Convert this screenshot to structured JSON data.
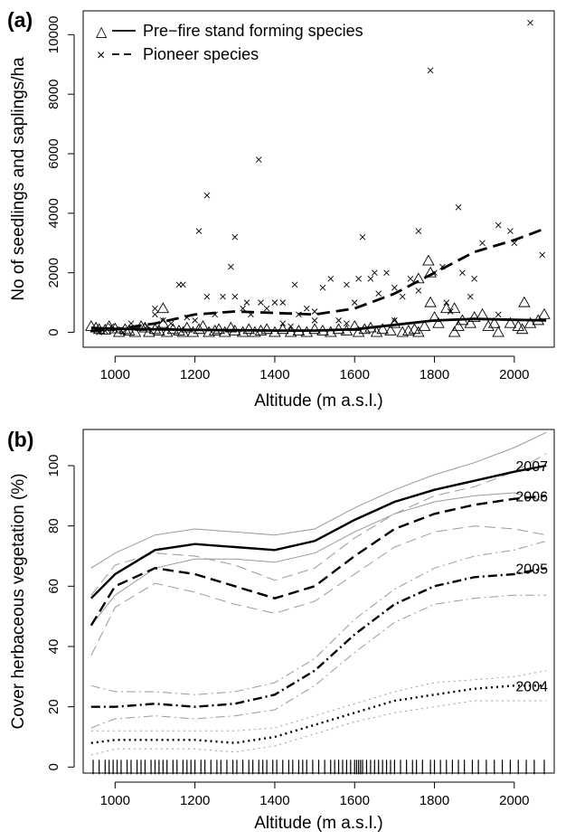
{
  "panel_a": {
    "tag": "(a)",
    "legend": [
      {
        "symbol": "△",
        "line": "solid",
        "label": "Pre−fire stand forming species"
      },
      {
        "symbol": "×",
        "line": "dashed",
        "label": "Pioneer species"
      }
    ]
  },
  "panel_b": {
    "tag": "(b)"
  },
  "chart_data": [
    {
      "type": "scatter",
      "xlabel": "Altitude (m a.s.l.)",
      "ylabel": "No of seedlings and saplings/ha",
      "xlim": [
        920,
        2100
      ],
      "ylim": [
        -500,
        10800
      ],
      "x_ticks": [
        1000,
        1200,
        1400,
        1600,
        1800,
        2000
      ],
      "y_ticks": [
        0,
        2000,
        4000,
        6000,
        8000,
        10000
      ],
      "grid": false,
      "legend_position": "top-left",
      "series": [
        {
          "name": "Pre−fire stand forming species",
          "marker": "triangle",
          "x": [
            940,
            952,
            960,
            975,
            985,
            1000,
            1010,
            1025,
            1035,
            1050,
            1065,
            1075,
            1085,
            1100,
            1110,
            1120,
            1130,
            1145,
            1160,
            1170,
            1180,
            1195,
            1210,
            1220,
            1235,
            1250,
            1260,
            1275,
            1290,
            1300,
            1320,
            1335,
            1350,
            1365,
            1380,
            1400,
            1420,
            1440,
            1460,
            1480,
            1500,
            1520,
            1540,
            1560,
            1580,
            1600,
            1610,
            1625,
            1640,
            1655,
            1670,
            1690,
            1700,
            1720,
            1735,
            1750,
            1760,
            1775,
            1785,
            1790,
            1800,
            1810,
            1830,
            1850,
            1860,
            1870,
            1890,
            1900,
            1920,
            1935,
            1960,
            1990,
            2010,
            2025,
            2040,
            2060,
            2075,
            1120,
            1760,
            1790,
            1850,
            1950,
            2020
          ],
          "y": [
            200,
            150,
            100,
            80,
            200,
            120,
            0,
            100,
            50,
            0,
            200,
            150,
            0,
            100,
            50,
            300,
            0,
            100,
            50,
            0,
            150,
            0,
            100,
            200,
            0,
            50,
            100,
            0,
            150,
            50,
            0,
            100,
            0,
            50,
            100,
            0,
            100,
            0,
            50,
            0,
            100,
            50,
            0,
            100,
            50,
            200,
            0,
            100,
            150,
            0,
            100,
            50,
            300,
            0,
            50,
            100,
            0,
            200,
            2400,
            1000,
            500,
            300,
            800,
            0,
            200,
            400,
            300,
            500,
            600,
            200,
            0,
            300,
            200,
            1000,
            300,
            400,
            600,
            800,
            1800,
            2000,
            800,
            300,
            100
          ]
        },
        {
          "name": "Pioneer species",
          "marker": "cross",
          "x": [
            950,
            960,
            975,
            990,
            1000,
            1020,
            1040,
            1060,
            1080,
            1100,
            1120,
            1140,
            1160,
            1170,
            1180,
            1200,
            1210,
            1230,
            1250,
            1270,
            1290,
            1300,
            1320,
            1340,
            1360,
            1365,
            1380,
            1400,
            1420,
            1440,
            1450,
            1460,
            1480,
            1500,
            1520,
            1540,
            1560,
            1580,
            1600,
            1610,
            1620,
            1640,
            1660,
            1680,
            1700,
            1720,
            1740,
            1760,
            1790,
            1800,
            1820,
            1840,
            1860,
            1870,
            1890,
            1920,
            1960,
            1990,
            2000,
            2040,
            2070,
            1100,
            1300,
            1500,
            1700,
            1900,
            1830,
            1960,
            1650,
            1230,
            1330,
            1420,
            1580,
            1760
          ],
          "y": [
            100,
            0,
            50,
            200,
            100,
            0,
            300,
            150,
            200,
            600,
            400,
            300,
            1600,
            1600,
            500,
            400,
            3400,
            4600,
            600,
            1200,
            2200,
            3200,
            800,
            600,
            5800,
            1000,
            800,
            1000,
            300,
            200,
            1600,
            600,
            800,
            700,
            1500,
            1800,
            400,
            300,
            1000,
            1800,
            3200,
            1800,
            1300,
            2000,
            1500,
            1200,
            1800,
            3400,
            8800,
            2000,
            2200,
            700,
            4200,
            2000,
            1200,
            3000,
            3600,
            3400,
            3000,
            10400,
            2600,
            800,
            1200,
            400,
            400,
            1800,
            1000,
            600,
            2000,
            1200,
            1000,
            1000,
            1600,
            1400
          ]
        }
      ],
      "fits": [
        {
          "name": "Pre−fire stand forming species",
          "line": "solid",
          "x": [
            940,
            1000,
            1100,
            1200,
            1300,
            1400,
            1500,
            1600,
            1700,
            1800,
            1900,
            2000,
            2080
          ],
          "y": [
            150,
            120,
            100,
            80,
            70,
            60,
            60,
            100,
            250,
            400,
            450,
            420,
            400
          ]
        },
        {
          "name": "Pioneer species",
          "line": "dashed",
          "x": [
            940,
            1000,
            1100,
            1200,
            1300,
            1400,
            1500,
            1600,
            1700,
            1800,
            1900,
            2000,
            2080
          ],
          "y": [
            50,
            100,
            300,
            600,
            700,
            650,
            600,
            800,
            1300,
            2000,
            2700,
            3100,
            3500
          ]
        }
      ]
    },
    {
      "type": "line",
      "xlabel": "Altitude (m a.s.l.)",
      "ylabel": "Cover herbaceous vegetation (%)",
      "xlim": [
        920,
        2100
      ],
      "ylim": [
        -2,
        112
      ],
      "x_ticks": [
        1000,
        1200,
        1400,
        1600,
        1800,
        2000
      ],
      "y_ticks": [
        0,
        20,
        40,
        60,
        80,
        100
      ],
      "grid": false,
      "legend_position": "none",
      "x": [
        940,
        1000,
        1100,
        1200,
        1300,
        1400,
        1500,
        1600,
        1700,
        1800,
        1900,
        2000,
        2080
      ],
      "series": [
        {
          "name": "2007",
          "line": "solid",
          "values": [
            56,
            64,
            72,
            74,
            73,
            72,
            75,
            82,
            88,
            92,
            95,
            98,
            100
          ],
          "upper": [
            66,
            71,
            77,
            79,
            78,
            77,
            79,
            86,
            92,
            97,
            101,
            106,
            111
          ],
          "lower": [
            47,
            57,
            66,
            69,
            69,
            68,
            71,
            78,
            84,
            88,
            90,
            91,
            88
          ]
        },
        {
          "name": "2006",
          "line": "dashed",
          "values": [
            47,
            60,
            66,
            64,
            60,
            56,
            60,
            70,
            79,
            84,
            87,
            89,
            90
          ],
          "upper": [
            57,
            67,
            71,
            70,
            67,
            62,
            66,
            76,
            84,
            90,
            93,
            98,
            104
          ],
          "lower": [
            37,
            53,
            61,
            58,
            54,
            51,
            55,
            64,
            73,
            78,
            80,
            79,
            77
          ]
        },
        {
          "name": "2005",
          "line": "dotdash",
          "values": [
            20,
            20,
            21,
            20,
            21,
            24,
            32,
            44,
            54,
            60,
            63,
            64,
            66
          ],
          "upper": [
            27,
            25,
            25,
            24,
            25,
            28,
            36,
            49,
            59,
            66,
            70,
            72,
            75
          ],
          "lower": [
            13,
            16,
            17,
            16,
            17,
            19,
            27,
            38,
            48,
            54,
            56,
            57,
            57
          ]
        },
        {
          "name": "2004",
          "line": "dotted",
          "values": [
            8,
            9,
            9,
            9,
            8,
            10,
            14,
            18,
            22,
            24,
            26,
            27,
            27
          ],
          "upper": [
            12,
            12,
            12,
            12,
            12,
            13,
            17,
            21,
            25,
            28,
            29,
            30,
            32
          ],
          "lower": [
            4,
            6,
            6,
            6,
            5,
            7,
            11,
            15,
            18,
            20,
            22,
            22,
            22
          ]
        }
      ],
      "rug_x": [
        945,
        960,
        975,
        985,
        995,
        1005,
        1015,
        1030,
        1040,
        1055,
        1065,
        1075,
        1090,
        1100,
        1110,
        1120,
        1130,
        1145,
        1155,
        1170,
        1180,
        1190,
        1200,
        1215,
        1225,
        1240,
        1255,
        1265,
        1280,
        1295,
        1305,
        1320,
        1335,
        1345,
        1360,
        1370,
        1380,
        1395,
        1405,
        1420,
        1435,
        1445,
        1460,
        1470,
        1480,
        1495,
        1510,
        1525,
        1540,
        1550,
        1560,
        1570,
        1580,
        1590,
        1600,
        1605,
        1610,
        1615,
        1620,
        1630,
        1640,
        1650,
        1660,
        1670,
        1680,
        1690,
        1700,
        1715,
        1730,
        1745,
        1755,
        1770,
        1790,
        1800,
        1815,
        1830,
        1845,
        1860,
        1875,
        1895,
        1910,
        1930,
        1950,
        1970,
        1990,
        2010,
        2030,
        2050,
        2075
      ]
    }
  ]
}
